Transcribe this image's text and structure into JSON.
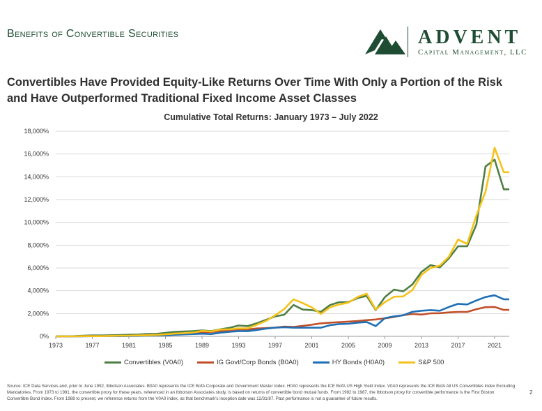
{
  "header": {
    "title": "Benefits of Convertible Securities",
    "logo_name": "ADVENT",
    "logo_subtitle": "Capital Management, LLC"
  },
  "headline": "Convertibles Have Provided Equity-Like Returns Over Time With Only a Portion of the Risk and Have Outperformed Traditional Fixed Income Asset Classes",
  "colors": {
    "brand_green": "#1f4d33",
    "convertibles": "#4f7f45",
    "ig_bonds": "#c0502a",
    "hy_bonds": "#1f6fb5",
    "sp500": "#f5c21b"
  },
  "chart_data": {
    "type": "line",
    "title": "Cumulative Total Returns: January 1973 – July 2022",
    "xlabel": "",
    "ylabel": "",
    "xlim": [
      1973,
      2022.6
    ],
    "ylim": [
      0,
      18000
    ],
    "x_ticks": [
      "1973",
      "1977",
      "1981",
      "1985",
      "1989",
      "1993",
      "1997",
      "2001",
      "2005",
      "2009",
      "2013",
      "2017",
      "2021"
    ],
    "y_ticks": [
      "0%",
      "2,000%",
      "4,000%",
      "6,000%",
      "8,000%",
      "10,000%",
      "12,000%",
      "14,000%",
      "16,000%",
      "18,000%"
    ],
    "grid": "horizontal",
    "legend": "bottom",
    "x": [
      1973,
      1974,
      1975,
      1976,
      1977,
      1978,
      1979,
      1980,
      1981,
      1982,
      1983,
      1984,
      1985,
      1986,
      1987,
      1988,
      1989,
      1990,
      1991,
      1992,
      1993,
      1994,
      1995,
      1996,
      1997,
      1998,
      1999,
      2000,
      2001,
      2002,
      2003,
      2004,
      2005,
      2006,
      2007,
      2008,
      2009,
      2010,
      2011,
      2012,
      2013,
      2014,
      2015,
      2016,
      2017,
      2018,
      2019,
      2020,
      2021,
      2022,
      2022.6
    ],
    "series": [
      {
        "name": "Convertibles (V0A0)",
        "color": "#4f7f45",
        "values": [
          0,
          0,
          20,
          60,
          80,
          80,
          100,
          120,
          140,
          160,
          200,
          220,
          300,
          400,
          420,
          460,
          520,
          460,
          620,
          750,
          950,
          900,
          1150,
          1450,
          1750,
          1900,
          2750,
          2350,
          2300,
          2150,
          2750,
          3000,
          3000,
          3350,
          3550,
          2300,
          3450,
          4100,
          3950,
          4550,
          5650,
          6250,
          6050,
          6850,
          7900,
          7900,
          9800,
          14900,
          15500,
          12900,
          12900
        ]
      },
      {
        "name": "IG Govt/Corp Bonds (B0A0)",
        "color": "#c0502a",
        "values": [
          0,
          0,
          0,
          20,
          30,
          30,
          30,
          30,
          40,
          80,
          100,
          120,
          180,
          240,
          240,
          280,
          350,
          380,
          460,
          540,
          620,
          600,
          690,
          720,
          770,
          850,
          820,
          920,
          1020,
          1140,
          1200,
          1240,
          1290,
          1340,
          1420,
          1480,
          1580,
          1700,
          1860,
          1960,
          1910,
          2020,
          2030,
          2100,
          2140,
          2140,
          2380,
          2560,
          2580,
          2320,
          2320
        ]
      },
      {
        "name": "HY Bonds (H0A0)",
        "color": "#1f6fb5",
        "values": [
          0,
          0,
          0,
          0,
          20,
          30,
          30,
          30,
          30,
          40,
          60,
          80,
          100,
          140,
          170,
          200,
          230,
          200,
          320,
          400,
          450,
          450,
          560,
          680,
          760,
          800,
          760,
          760,
          760,
          760,
          980,
          1080,
          1100,
          1200,
          1260,
          900,
          1600,
          1750,
          1850,
          2150,
          2250,
          2300,
          2250,
          2580,
          2850,
          2800,
          3150,
          3450,
          3600,
          3250,
          3250
        ]
      },
      {
        "name": "S&P 500",
        "color": "#f5c21b",
        "values": [
          0,
          0,
          0,
          20,
          20,
          20,
          40,
          60,
          60,
          80,
          100,
          120,
          180,
          240,
          280,
          330,
          470,
          420,
          600,
          620,
          700,
          700,
          1020,
          1350,
          1850,
          2400,
          3250,
          2920,
          2550,
          1970,
          2550,
          2800,
          2950,
          3450,
          3750,
          2350,
          3000,
          3480,
          3500,
          4050,
          5400,
          6000,
          6200,
          7000,
          8500,
          8100,
          10600,
          12700,
          16550,
          14400,
          14400
        ]
      }
    ]
  },
  "footnote": "Source: ICE Data Services and, prior to June 1992, Ibbotson Associates. B0A0 represents the ICE BofA Corporate and Government Master Index. H0A0 represents the ICE BofA US High Yield Index. V0A0 represents the ICE BofA All US Convertibles Index Excluding Mandatories. From 1973 to 1981, the convertible proxy for these years, referenced in an Ibbotson Associates study, is based on returns of convertible bond mutual funds. From 1982 to 1987, the Ibbotson proxy for convertible performance is the First Boston Convertible Bond Index. From 1988 to present, we reference returns from the V0A0 index, as that benchmark's inception date was 12/31/87. Past performance is not a guarantee of future results.",
  "page_number": "2"
}
